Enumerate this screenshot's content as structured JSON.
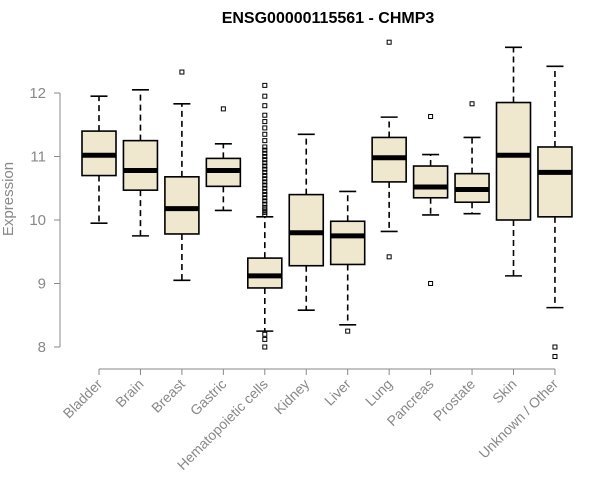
{
  "chart_data": {
    "type": "box",
    "title": "ENSG00000115561 - CHMP3",
    "ylabel": "Expression",
    "xlabel": "",
    "ylim": [
      7.8,
      12.9
    ],
    "yticks": [
      8,
      9,
      10,
      11,
      12
    ],
    "grid": false,
    "legend": "none",
    "box_fill": "#efe8cf",
    "categories": [
      "Bladder",
      "Brain",
      "Breast",
      "Gastric",
      "Hematopoietic cells",
      "Kidney",
      "Liver",
      "Lung",
      "Pancreas",
      "Prostate",
      "Skin",
      "Unknown / Other"
    ],
    "boxes": [
      {
        "category": "Bladder",
        "whisker_low": 9.95,
        "q1": 10.7,
        "median": 11.02,
        "q3": 11.4,
        "whisker_high": 11.95,
        "outliers": []
      },
      {
        "category": "Brain",
        "whisker_low": 9.75,
        "q1": 10.47,
        "median": 10.78,
        "q3": 11.25,
        "whisker_high": 12.05,
        "outliers": []
      },
      {
        "category": "Breast",
        "whisker_low": 9.05,
        "q1": 9.78,
        "median": 10.18,
        "q3": 10.68,
        "whisker_high": 11.83,
        "outliers": [
          12.33
        ]
      },
      {
        "category": "Gastric",
        "whisker_low": 10.15,
        "q1": 10.53,
        "median": 10.78,
        "q3": 10.97,
        "whisker_high": 11.2,
        "outliers": [
          11.75
        ]
      },
      {
        "category": "Hematopoietic cells",
        "whisker_low": 8.25,
        "q1": 8.93,
        "median": 9.12,
        "q3": 9.4,
        "whisker_high": 10.05,
        "outliers": [
          8.0,
          8.12,
          8.2,
          10.08,
          10.12,
          10.16,
          10.2,
          10.25,
          10.3,
          10.35,
          10.4,
          10.45,
          10.5,
          10.55,
          10.6,
          10.65,
          10.7,
          10.75,
          10.8,
          10.85,
          10.9,
          10.95,
          11.0,
          11.05,
          11.1,
          11.15,
          11.25,
          11.35,
          11.45,
          11.55,
          11.65,
          11.8,
          11.95,
          12.12
        ]
      },
      {
        "category": "Kidney",
        "whisker_low": 8.58,
        "q1": 9.28,
        "median": 9.8,
        "q3": 10.4,
        "whisker_high": 11.35,
        "outliers": []
      },
      {
        "category": "Liver",
        "whisker_low": 8.35,
        "q1": 9.3,
        "median": 9.75,
        "q3": 9.98,
        "whisker_high": 10.45,
        "outliers": [
          8.25
        ]
      },
      {
        "category": "Lung",
        "whisker_low": 9.82,
        "q1": 10.6,
        "median": 10.98,
        "q3": 11.3,
        "whisker_high": 11.62,
        "outliers": [
          9.42,
          12.8
        ]
      },
      {
        "category": "Pancreas",
        "whisker_low": 10.08,
        "q1": 10.35,
        "median": 10.52,
        "q3": 10.85,
        "whisker_high": 11.03,
        "outliers": [
          9.0,
          11.63
        ]
      },
      {
        "category": "Prostate",
        "whisker_low": 10.1,
        "q1": 10.28,
        "median": 10.48,
        "q3": 10.73,
        "whisker_high": 11.3,
        "outliers": [
          11.83
        ]
      },
      {
        "category": "Skin",
        "whisker_low": 9.12,
        "q1": 10.0,
        "median": 11.02,
        "q3": 11.85,
        "whisker_high": 12.72,
        "outliers": []
      },
      {
        "category": "Unknown / Other",
        "whisker_low": 8.62,
        "q1": 10.05,
        "median": 10.75,
        "q3": 11.15,
        "whisker_high": 12.42,
        "outliers": [
          7.85,
          8.0
        ]
      }
    ]
  }
}
